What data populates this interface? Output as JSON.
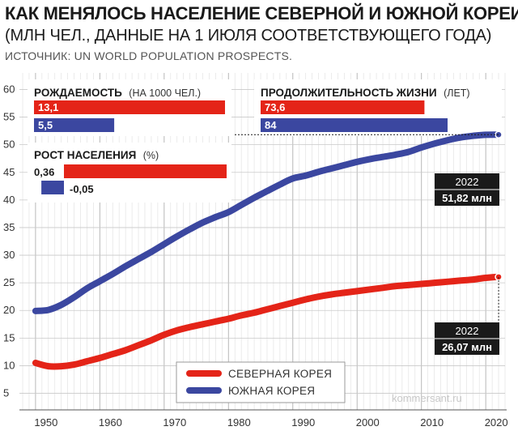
{
  "header": {
    "title": "КАК МЕНЯЛОСЬ НАСЕЛЕНИЕ СЕВЕРНОЙ И ЮЖНОЙ КОРЕИ",
    "subtitle": "(МЛН ЧЕЛ., ДАННЫЕ НА 1 ИЮЛЯ СООТВЕТСТВУЮЩЕГО ГОДА)",
    "source": "ИСТОЧНИК: UN WORLD POPULATION PROSPECTS."
  },
  "watermark": "kommersant.ru",
  "colors": {
    "north": "#e42418",
    "south": "#3b47a0",
    "dark": "#1a1a1a",
    "grid": "#d9d9d9"
  },
  "chart_data": {
    "type": "line",
    "ylim": [
      2,
      63
    ],
    "xlim": [
      1948,
      2023
    ],
    "yticks": [
      5,
      10,
      15,
      20,
      25,
      30,
      35,
      40,
      45,
      50,
      55,
      60
    ],
    "xticks": [
      "1950",
      "1960",
      "1970",
      "1980",
      "1990",
      "2000",
      "2010",
      "2020"
    ],
    "grid": true,
    "legend_position": "bottom-center",
    "series": [
      {
        "name": "СЕВЕРНАЯ КОРЕЯ",
        "color": "#e42418",
        "points": [
          [
            1950,
            10.5
          ],
          [
            1952,
            9.9
          ],
          [
            1954,
            9.9
          ],
          [
            1956,
            10.2
          ],
          [
            1958,
            10.8
          ],
          [
            1960,
            11.4
          ],
          [
            1962,
            12.1
          ],
          [
            1964,
            12.8
          ],
          [
            1966,
            13.7
          ],
          [
            1968,
            14.6
          ],
          [
            1970,
            15.6
          ],
          [
            1972,
            16.4
          ],
          [
            1974,
            17.0
          ],
          [
            1976,
            17.5
          ],
          [
            1978,
            18.0
          ],
          [
            1980,
            18.5
          ],
          [
            1982,
            19.1
          ],
          [
            1984,
            19.6
          ],
          [
            1986,
            20.2
          ],
          [
            1988,
            20.8
          ],
          [
            1990,
            21.4
          ],
          [
            1992,
            22.0
          ],
          [
            1994,
            22.5
          ],
          [
            1996,
            22.9
          ],
          [
            1998,
            23.2
          ],
          [
            2000,
            23.5
          ],
          [
            2002,
            23.8
          ],
          [
            2004,
            24.1
          ],
          [
            2006,
            24.4
          ],
          [
            2008,
            24.6
          ],
          [
            2010,
            24.8
          ],
          [
            2012,
            25.0
          ],
          [
            2014,
            25.2
          ],
          [
            2016,
            25.4
          ],
          [
            2018,
            25.6
          ],
          [
            2020,
            25.9
          ],
          [
            2022,
            26.07
          ]
        ]
      },
      {
        "name": "ЮЖНАЯ КОРЕЯ",
        "color": "#3b47a0",
        "points": [
          [
            1950,
            19.9
          ],
          [
            1952,
            20.1
          ],
          [
            1954,
            21.0
          ],
          [
            1956,
            22.4
          ],
          [
            1958,
            24.0
          ],
          [
            1960,
            25.3
          ],
          [
            1962,
            26.6
          ],
          [
            1964,
            28.0
          ],
          [
            1966,
            29.3
          ],
          [
            1968,
            30.6
          ],
          [
            1970,
            32.0
          ],
          [
            1972,
            33.4
          ],
          [
            1974,
            34.7
          ],
          [
            1976,
            35.9
          ],
          [
            1978,
            36.9
          ],
          [
            1980,
            37.8
          ],
          [
            1982,
            39.1
          ],
          [
            1984,
            40.4
          ],
          [
            1986,
            41.6
          ],
          [
            1988,
            42.8
          ],
          [
            1990,
            43.9
          ],
          [
            1992,
            44.4
          ],
          [
            1994,
            45.1
          ],
          [
            1996,
            45.7
          ],
          [
            1998,
            46.3
          ],
          [
            2000,
            46.9
          ],
          [
            2002,
            47.4
          ],
          [
            2004,
            47.8
          ],
          [
            2006,
            48.2
          ],
          [
            2008,
            48.7
          ],
          [
            2010,
            49.5
          ],
          [
            2012,
            50.2
          ],
          [
            2014,
            50.8
          ],
          [
            2016,
            51.3
          ],
          [
            2018,
            51.6
          ],
          [
            2020,
            51.8
          ],
          [
            2022,
            51.82
          ]
        ]
      }
    ],
    "callouts": [
      {
        "year": "2022",
        "value": "51,82 млн",
        "series": "ЮЖНАЯ КОРЕЯ"
      },
      {
        "year": "2022",
        "value": "26,07 млн",
        "series": "СЕВЕРНАЯ КОРЕЯ"
      }
    ]
  },
  "panels": {
    "fertility": {
      "title": "РОЖДАЕМОСТЬ",
      "unit": "(НА 1000 ЧЕЛ.)",
      "north_label": "13,1",
      "north_value": 13.1,
      "south_label": "5,5",
      "south_value": 5.5
    },
    "life": {
      "title": "ПРОДОЛЖИТЕЛЬНОСТЬ ЖИЗНИ",
      "unit": "(ЛЕТ)",
      "north_label": "73,6",
      "north_value": 73.6,
      "south_label": "84",
      "south_value": 84
    },
    "growth": {
      "title": "РОСТ НАСЕЛЕНИЯ",
      "unit": "(%)",
      "north_label": "0,36",
      "north_value": 0.36,
      "south_label": "-0,05",
      "south_value": -0.05
    }
  }
}
